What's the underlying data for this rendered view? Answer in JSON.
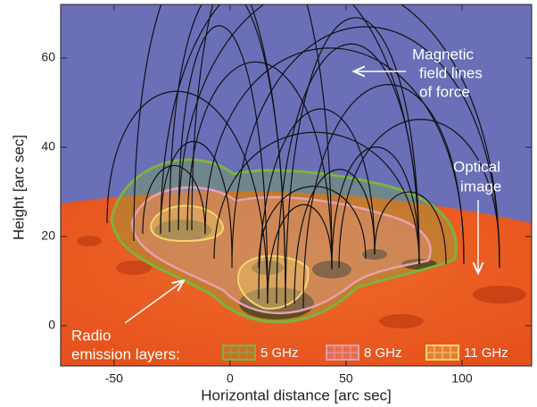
{
  "chart_data": {
    "type": "image",
    "x_label": "Horizontal distance [arc sec]",
    "y_label": "Height [arc sec]",
    "xlim": [
      -73,
      130
    ],
    "xticks": [
      -50,
      0,
      50,
      100
    ],
    "ylim": [
      -9,
      72
    ],
    "yticks": [
      0,
      20,
      40,
      60
    ],
    "annotations": {
      "field_lines": [
        "Magnetic",
        "field lines",
        "of force"
      ],
      "optical": [
        "Optical",
        "image"
      ],
      "radio": [
        "Radio",
        "emission layers:"
      ]
    },
    "legend": [
      {
        "name": "5 GHz",
        "color": "#7cb342"
      },
      {
        "name": "8 GHz",
        "color": "#e8a0b0"
      },
      {
        "name": "11 GHz",
        "color": "#f5d76e"
      }
    ]
  }
}
